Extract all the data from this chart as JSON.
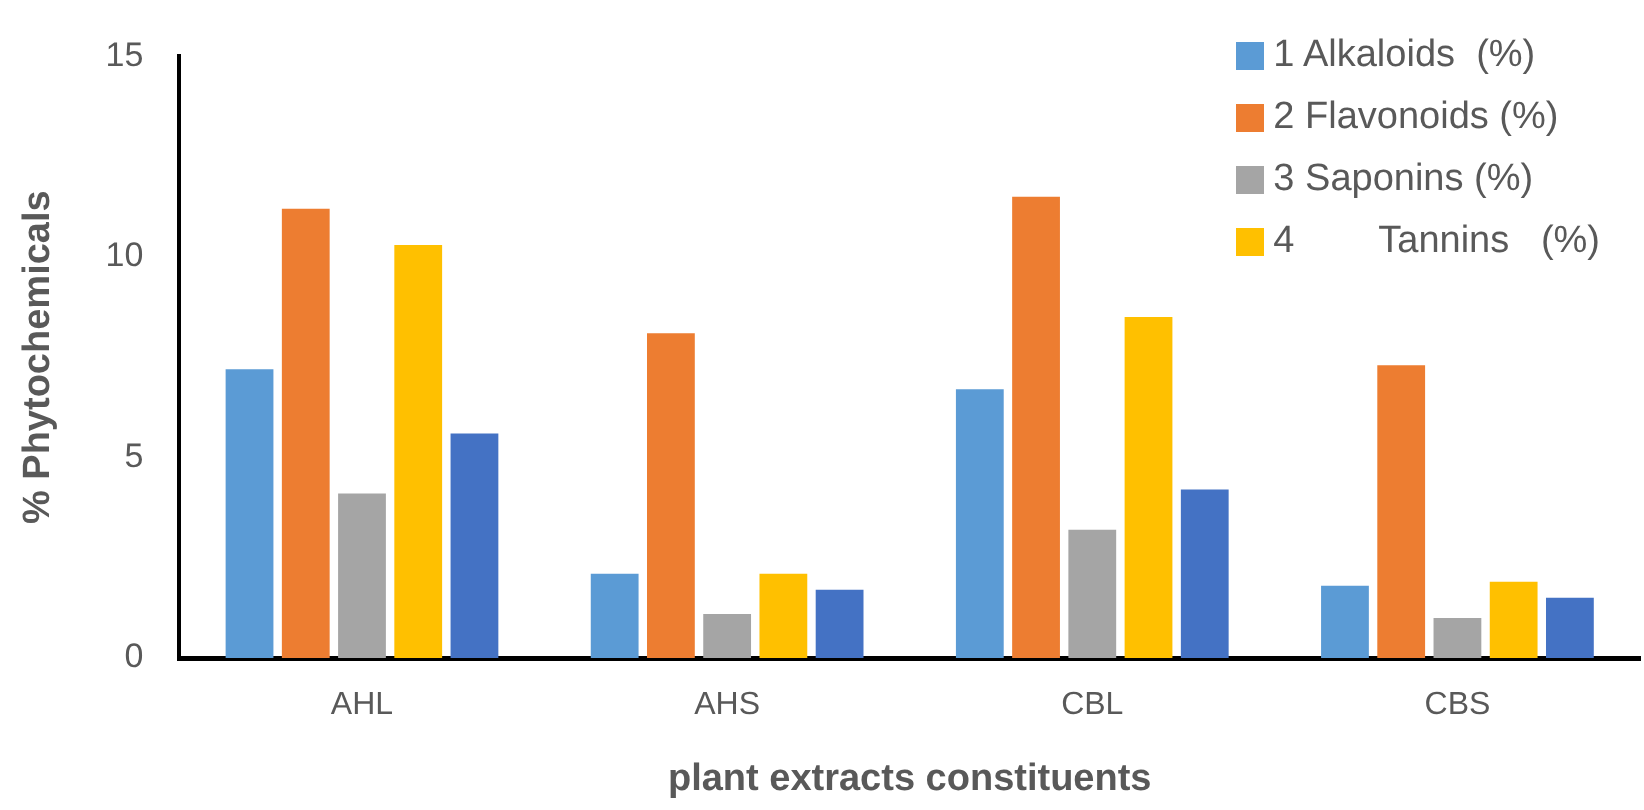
{
  "chart_data": {
    "type": "bar",
    "xlabel": "plant extracts constituents",
    "ylabel": "% Phytochemicals",
    "categories": [
      "AHL",
      "AHS",
      "CBL",
      "CBS"
    ],
    "series": [
      {
        "name": "1 Alkaloids  (%)",
        "color": "#5b9bd5",
        "values": [
          7.2,
          2.1,
          6.7,
          1.8
        ]
      },
      {
        "name": "2 Flavonoids (%)",
        "color": "#ed7d31",
        "values": [
          11.2,
          8.1,
          11.5,
          7.3
        ]
      },
      {
        "name": "3 Saponins (%)",
        "color": "#a5a5a5",
        "values": [
          4.1,
          1.1,
          3.2,
          1.0
        ]
      },
      {
        "name": "4        Tannins   (%)",
        "color": "#ffc000",
        "values": [
          10.3,
          2.1,
          8.5,
          1.9
        ]
      },
      {
        "color": "#4472c4",
        "values": [
          5.6,
          1.7,
          4.2,
          1.5
        ]
      }
    ],
    "ylim": [
      0,
      15
    ],
    "yticks": [
      0,
      5,
      10,
      15
    ],
    "grid": false,
    "legend": "top right"
  }
}
